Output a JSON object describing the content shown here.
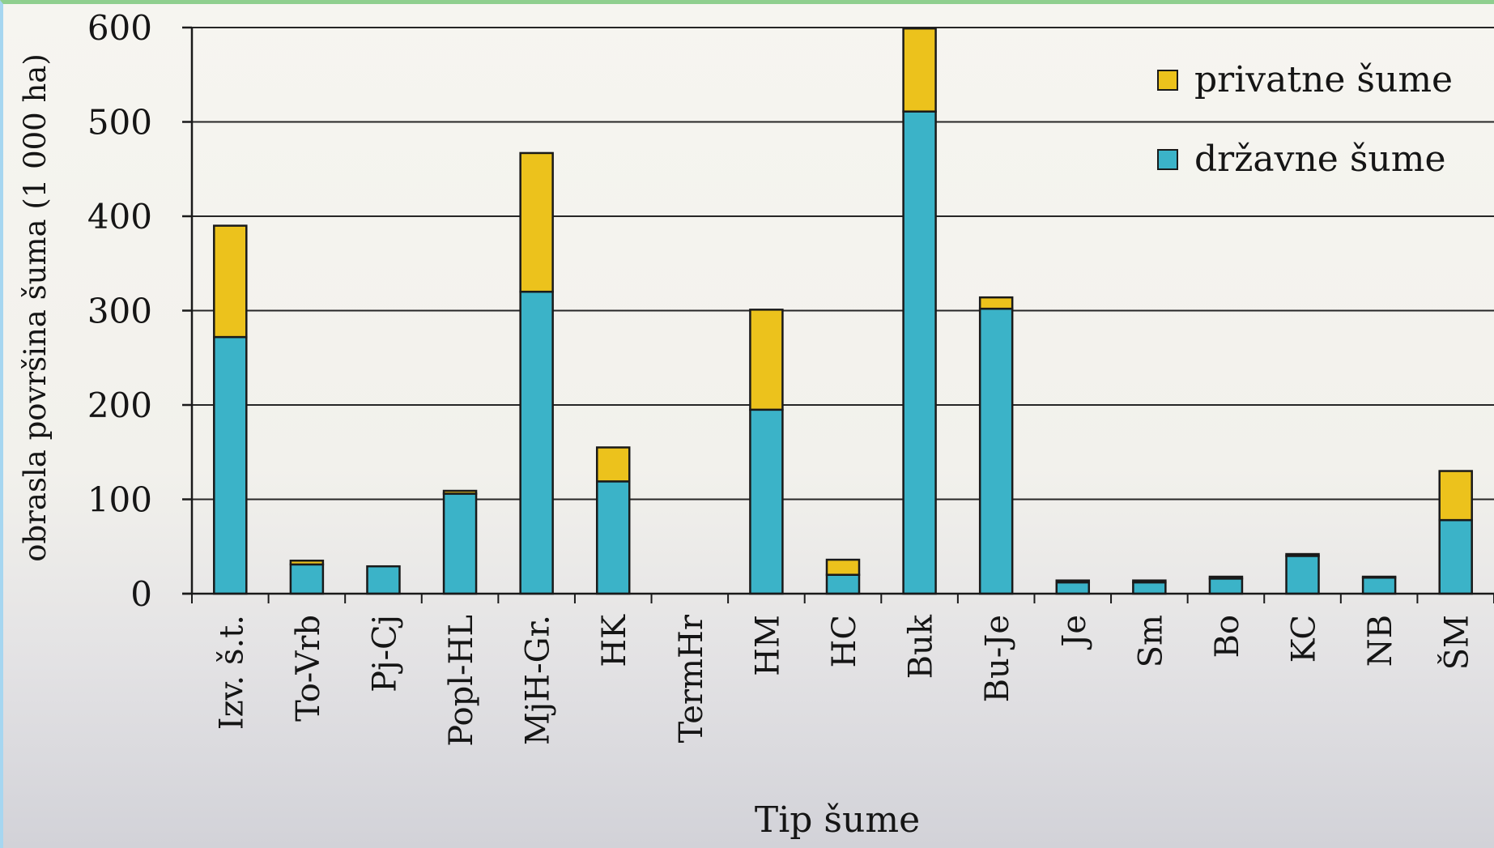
{
  "chart_data": {
    "type": "bar",
    "stacked": true,
    "categories": [
      "Izv. š.t.",
      "To-Vrb",
      "Pj-Cj",
      "Popl-HL",
      "MjH-Gr.",
      "HK",
      "TermHr",
      "HM",
      "HC",
      "Buk",
      "Bu-Je",
      "Je",
      "Sm",
      "Bo",
      "KC",
      "NB",
      "ŠM"
    ],
    "series": [
      {
        "name": "državne šume",
        "color": "#3bb3c8",
        "values": [
          272,
          31,
          29,
          106,
          320,
          119,
          0,
          195,
          20,
          511,
          302,
          12,
          12,
          16,
          40,
          17,
          78
        ]
      },
      {
        "name": "privatne šume",
        "color": "#ecc21c",
        "values": [
          118,
          4,
          0,
          3,
          147,
          36,
          0,
          106,
          16,
          88,
          12,
          2,
          2,
          2,
          2,
          1,
          52
        ]
      }
    ],
    "xlabel": "Tip šume",
    "ylabel": "obrasla površina šuma (1 000 ha)",
    "ylim": [
      0,
      600
    ],
    "yticks": [
      0,
      100,
      200,
      300,
      400,
      500,
      600
    ],
    "grid": true,
    "legend_position": "top-right",
    "legend": [
      "privatne šume",
      "državne šume"
    ]
  }
}
